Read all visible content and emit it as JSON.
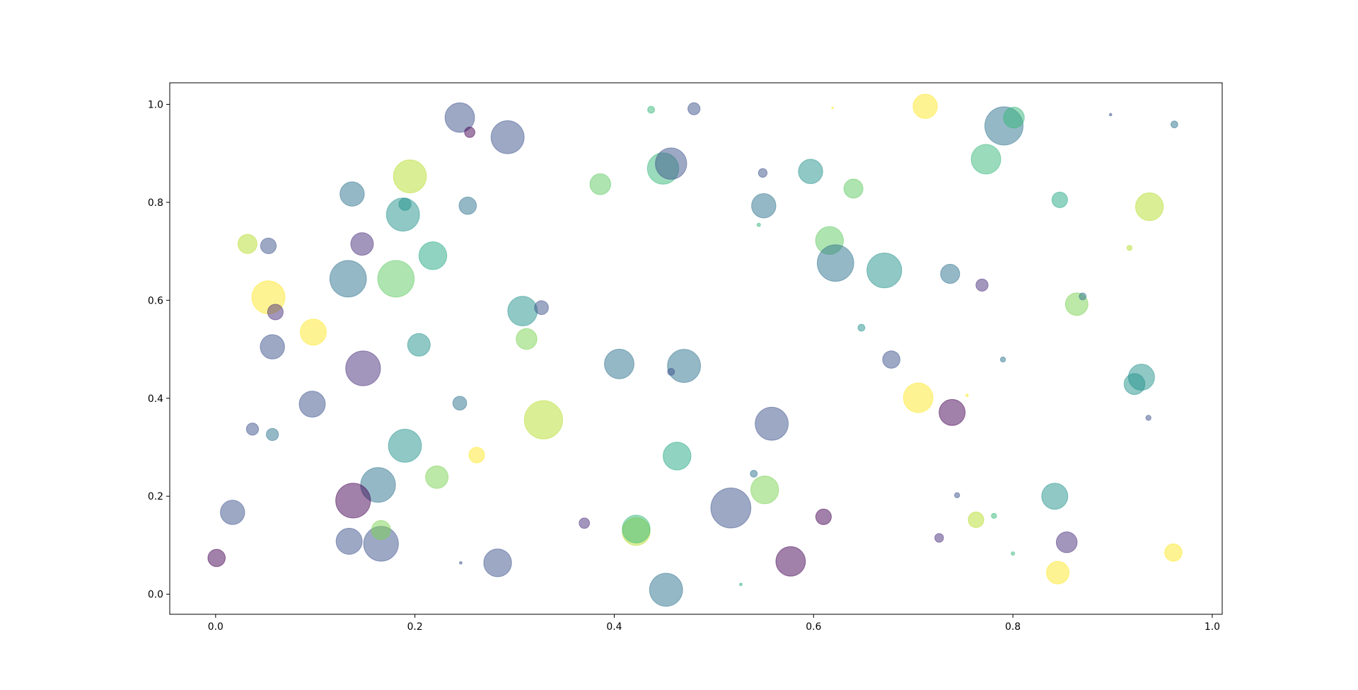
{
  "chart_data": {
    "type": "scatter",
    "x": [
      0.001,
      0.017,
      0.032,
      0.053,
      0.053,
      0.06,
      0.057,
      0.037,
      0.057,
      0.097,
      0.098,
      0.137,
      0.147,
      0.133,
      0.181,
      0.148,
      0.195,
      0.188,
      0.19,
      0.218,
      0.204,
      0.19,
      0.163,
      0.138,
      0.134,
      0.166,
      0.166,
      0.222,
      0.245,
      0.255,
      0.253,
      0.245,
      0.262,
      0.246,
      0.293,
      0.308,
      0.327,
      0.312,
      0.329,
      0.283,
      0.37,
      0.386,
      0.405,
      0.422,
      0.422,
      0.437,
      0.449,
      0.457,
      0.48,
      0.47,
      0.457,
      0.463,
      0.452,
      0.517,
      0.558,
      0.551,
      0.54,
      0.527,
      0.549,
      0.55,
      0.545,
      0.577,
      0.597,
      0.619,
      0.616,
      0.622,
      0.61,
      0.64,
      0.648,
      0.671,
      0.678,
      0.712,
      0.705,
      0.737,
      0.739,
      0.726,
      0.744,
      0.754,
      0.769,
      0.763,
      0.781,
      0.773,
      0.791,
      0.801,
      0.79,
      0.8,
      0.842,
      0.847,
      0.845,
      0.854,
      0.864,
      0.87,
      0.898,
      0.917,
      0.937,
      0.929,
      0.922,
      0.936,
      0.962,
      0.961
    ],
    "y": [
      0.074,
      0.167,
      0.715,
      0.711,
      0.606,
      0.576,
      0.505,
      0.337,
      0.326,
      0.388,
      0.535,
      0.817,
      0.715,
      0.644,
      0.644,
      0.461,
      0.853,
      0.775,
      0.796,
      0.691,
      0.509,
      0.303,
      0.223,
      0.191,
      0.108,
      0.103,
      0.131,
      0.239,
      0.973,
      0.943,
      0.793,
      0.39,
      0.284,
      0.064,
      0.933,
      0.578,
      0.585,
      0.521,
      0.356,
      0.064,
      0.145,
      0.837,
      0.47,
      0.128,
      0.133,
      0.989,
      0.869,
      0.879,
      0.991,
      0.466,
      0.454,
      0.282,
      0.009,
      0.176,
      0.348,
      0.213,
      0.246,
      0.02,
      0.86,
      0.793,
      0.754,
      0.067,
      0.863,
      0.993,
      0.722,
      0.676,
      0.158,
      0.828,
      0.544,
      0.661,
      0.479,
      0.996,
      0.401,
      0.654,
      0.371,
      0.115,
      0.202,
      0.406,
      0.631,
      0.152,
      0.16,
      0.888,
      0.956,
      0.973,
      0.479,
      0.083,
      0.2,
      0.805,
      0.044,
      0.106,
      0.592,
      0.608,
      0.979,
      0.707,
      0.791,
      0.443,
      0.429,
      0.36,
      0.959,
      0.085
    ],
    "sizes": [
      314,
      615,
      380,
      254,
      1134,
      254,
      615,
      154,
      154,
      707,
      707,
      615,
      531,
      1385,
      1385,
      1257,
      1134,
      1134,
      154,
      804,
      531,
      1134,
      1257,
      1257,
      707,
      1257,
      380,
      531,
      908,
      113,
      314,
      201,
      254,
      7,
      1134,
      908,
      201,
      452,
      1520,
      804,
      113,
      452,
      908,
      804,
      804,
      50,
      1018,
      1018,
      154,
      1134,
      50,
      804,
      1134,
      1662,
      1134,
      804,
      50,
      7,
      79,
      615,
      13,
      908,
      615,
      3,
      804,
      1385,
      254,
      380,
      50,
      1257,
      314,
      615,
      908,
      380,
      707,
      79,
      28,
      7,
      154,
      254,
      28,
      908,
      1520,
      452,
      28,
      13,
      707,
      254,
      531,
      452,
      531,
      50,
      7,
      28,
      804,
      707,
      452,
      28,
      50,
      314
    ],
    "colors": [
      "#440154",
      "#3b528b",
      "#b5de2b",
      "#3b528b",
      "#fde725",
      "#472d7b",
      "#3b528b",
      "#3b528b",
      "#2c728e",
      "#3b528b",
      "#fde725",
      "#2c728e",
      "#472d7b",
      "#2c728e",
      "#5ec962",
      "#472d7b",
      "#b5de2b",
      "#21918c",
      "#21918c",
      "#22a884",
      "#21918c",
      "#21918c",
      "#2c728e",
      "#440154",
      "#3b528b",
      "#3b528b",
      "#7ad151",
      "#7ad151",
      "#3b528b",
      "#440154",
      "#2c728e",
      "#2c728e",
      "#fde725",
      "#3b528b",
      "#3b528b",
      "#21918c",
      "#3b528b",
      "#7ad151",
      "#b5de2b",
      "#3b528b",
      "#472d7b",
      "#5ec962",
      "#2c728e",
      "#b5de2b",
      "#35b779",
      "#35b779",
      "#35b779",
      "#3b528b",
      "#3b528b",
      "#2c728e",
      "#3b528b",
      "#22a884",
      "#2c728e",
      "#3b528b",
      "#3b528b",
      "#7ad151",
      "#2c728e",
      "#22a884",
      "#3b528b",
      "#2c728e",
      "#35b779",
      "#440154",
      "#21918c",
      "#fde725",
      "#5ec962",
      "#2c728e",
      "#440154",
      "#5ec962",
      "#21918c",
      "#21918c",
      "#3b528b",
      "#fde725",
      "#fde725",
      "#2c728e",
      "#440154",
      "#472d7b",
      "#3b528b",
      "#fde725",
      "#472d7b",
      "#b5de2b",
      "#35b779",
      "#35b779",
      "#2c728e",
      "#35b779",
      "#2c728e",
      "#35b779",
      "#21918c",
      "#22a884",
      "#fde725",
      "#472d7b",
      "#7ad151",
      "#2c728e",
      "#3b528b",
      "#b5de2b",
      "#b5de2b",
      "#21918c",
      "#21918c",
      "#3b528b",
      "#2c728e",
      "#fde725"
    ],
    "alpha": 0.5,
    "xlim": [
      -0.046,
      1.01
    ],
    "ylim": [
      -0.041,
      1.044
    ],
    "xticks": [
      {
        "value": 0,
        "label": "0.0"
      },
      0.2,
      0.4,
      0.6,
      0.8,
      {
        "value": 1,
        "label": "1.0"
      }
    ],
    "yticks": [
      {
        "value": 0,
        "label": "0.0"
      },
      0.2,
      0.4,
      0.6,
      0.8,
      {
        "value": 1,
        "label": "1.0"
      }
    ],
    "grid": false
  }
}
